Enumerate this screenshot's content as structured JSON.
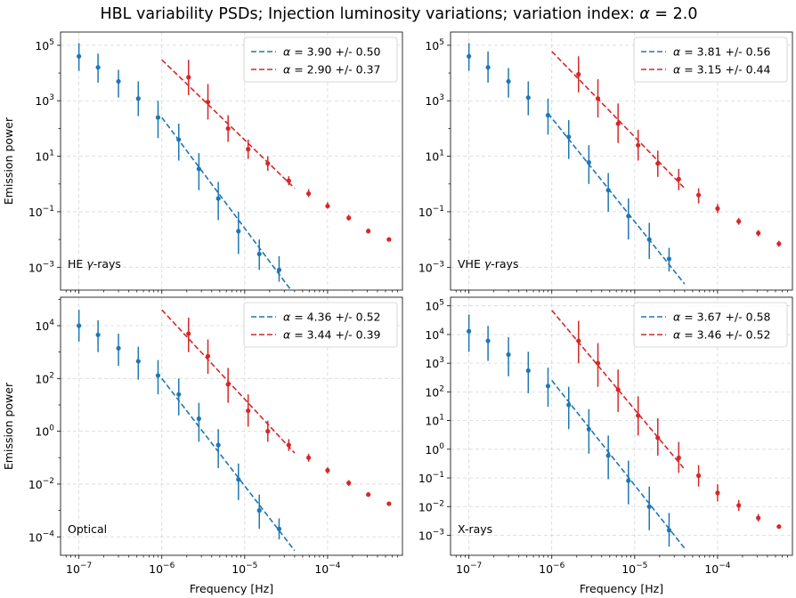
{
  "figure": {
    "title_prefix": "HBL variability PSDs; Injection luminosity variations; variation index: ",
    "title_symbol": "α",
    "title_suffix": " = 2.0",
    "shared_xlabel": "Frequency [Hz]",
    "shared_ylabel": "Emission power",
    "colors": {
      "blue": "#1f77b4",
      "red": "#d62728",
      "grid": "#b0b0b0"
    }
  },
  "chart_data": [
    {
      "type": "scatter",
      "panel": "top-left",
      "label_prefix": "HE ",
      "label_symbol": "γ",
      "label_suffix": "-rays",
      "xlabel": "",
      "ylabel": "Emission power",
      "xscale": "log",
      "yscale": "log",
      "xlim": [
        6e-08,
        0.0008
      ],
      "ylim": [
        0.00015,
        300000.0
      ],
      "xticks": [
        1e-07,
        1e-06,
        1e-05,
        0.0001
      ],
      "xtick_labels": [
        "10^-7",
        "10^-6",
        "10^-5",
        "10^-4"
      ],
      "yticks": [
        0.001,
        0.1,
        10.0,
        1000.0,
        100000.0
      ],
      "ytick_labels": [
        "10^-3",
        "10^-1",
        "10^1",
        "10^3",
        "10^5"
      ],
      "grid": true,
      "legend": [
        {
          "text_symbol": "α",
          "text": " = 3.90 +/- 0.50",
          "color": "#1f77b4"
        },
        {
          "text_symbol": "α",
          "text": " = 2.90 +/- 0.37",
          "color": "#d62728"
        }
      ],
      "series": [
        {
          "name": "blue",
          "color": "#1f77b4",
          "x": [
            1e-07,
            1.7e-07,
            3e-07,
            5.2e-07,
            9e-07,
            1.6e-06,
            2.8e-06,
            4.8e-06,
            8.4e-06,
            1.5e-05,
            2.6e-05
          ],
          "y": [
            40000.0,
            16000.0,
            5000.0,
            1200.0,
            250.0,
            40.0,
            3.5,
            0.3,
            0.02,
            0.003,
            0.0008
          ],
          "ylo": [
            12000.0,
            4500.0,
            1300.0,
            280.0,
            45.0,
            7.0,
            0.6,
            0.05,
            0.003,
            0.0008,
            0.0003
          ],
          "yhi": [
            120000.0,
            50000.0,
            13000.0,
            5000.0,
            1000.0,
            150.0,
            13.0,
            1.2,
            0.1,
            0.01,
            0.0025
          ]
        },
        {
          "name": "red",
          "color": "#d62728",
          "x": [
            2.1e-06,
            3.6e-06,
            6.3e-06,
            1.1e-05,
            1.9e-05,
            3.4e-05,
            5.9e-05,
            0.0001,
            0.00018,
            0.00031,
            0.00055
          ],
          "y": [
            7000.0,
            900.0,
            100.0,
            18.0,
            5.5,
            1.3,
            0.45,
            0.16,
            0.06,
            0.02,
            0.01
          ],
          "ylo": [
            1600.0,
            210.0,
            33.0,
            8.0,
            3.0,
            0.9,
            0.34,
            0.13,
            0.048,
            0.017,
            0.009
          ],
          "yhi": [
            30000.0,
            4000.0,
            300.0,
            40.0,
            10.0,
            1.9,
            0.65,
            0.22,
            0.078,
            0.025,
            0.012
          ]
        }
      ],
      "fits": [
        {
          "color": "#1f77b4",
          "x": [
            1e-06,
            4e-05
          ],
          "y": [
            250.0,
            0.0001
          ]
        },
        {
          "color": "#d62728",
          "x": [
            1e-06,
            4e-05
          ],
          "y": [
            30000.0,
            0.7
          ]
        }
      ]
    },
    {
      "type": "scatter",
      "panel": "top-right",
      "label_prefix": "VHE ",
      "label_symbol": "γ",
      "label_suffix": "-rays",
      "xlabel": "",
      "ylabel": "",
      "xscale": "log",
      "yscale": "log",
      "xlim": [
        6e-08,
        0.0008
      ],
      "ylim": [
        0.00015,
        300000.0
      ],
      "xticks": [
        1e-07,
        1e-06,
        1e-05,
        0.0001
      ],
      "xtick_labels": [
        "10^-7",
        "10^-6",
        "10^-5",
        "10^-4"
      ],
      "yticks": [
        0.001,
        0.1,
        10.0,
        1000.0,
        100000.0
      ],
      "ytick_labels": [
        "10^-3",
        "10^-1",
        "10^1",
        "10^3",
        "10^5"
      ],
      "grid": true,
      "legend": [
        {
          "text_symbol": "α",
          "text": " = 3.81 +/- 0.56",
          "color": "#1f77b4"
        },
        {
          "text_symbol": "α",
          "text": " = 3.15 +/- 0.44",
          "color": "#d62728"
        }
      ],
      "series": [
        {
          "name": "blue",
          "color": "#1f77b4",
          "x": [
            1e-07,
            1.7e-07,
            3e-07,
            5.2e-07,
            9e-07,
            1.6e-06,
            2.8e-06,
            4.8e-06,
            8.4e-06,
            1.5e-05,
            2.6e-05
          ],
          "y": [
            40000.0,
            16000.0,
            5000.0,
            1300.0,
            300.0,
            50.0,
            6.0,
            0.6,
            0.07,
            0.01,
            0.002
          ],
          "ylo": [
            12000.0,
            4500.0,
            1300.0,
            300.0,
            60.0,
            8.0,
            1.0,
            0.1,
            0.01,
            0.002,
            0.0007
          ],
          "yhi": [
            120000.0,
            60000.0,
            15000.0,
            5000.0,
            1200.0,
            200.0,
            25.0,
            2.5,
            0.3,
            0.04,
            0.005
          ]
        },
        {
          "name": "red",
          "color": "#d62728",
          "x": [
            2.1e-06,
            3.6e-06,
            6.3e-06,
            1.1e-05,
            1.9e-05,
            3.4e-05,
            5.9e-05,
            0.0001,
            0.00018,
            0.00031,
            0.00055
          ],
          "y": [
            9000.0,
            1200.0,
            150.0,
            25.0,
            5.5,
            1.5,
            0.4,
            0.13,
            0.045,
            0.017,
            0.007
          ],
          "ylo": [
            2000.0,
            250.0,
            30.0,
            7.0,
            1.8,
            0.6,
            0.2,
            0.09,
            0.034,
            0.013,
            0.0055
          ],
          "yhi": [
            40000.0,
            6000.0,
            800.0,
            90.0,
            16.0,
            3.5,
            0.7,
            0.19,
            0.06,
            0.022,
            0.009
          ]
        }
      ],
      "fits": [
        {
          "color": "#1f77b4",
          "x": [
            9e-07,
            4e-05
          ],
          "y": [
            350.0,
            0.00025
          ]
        },
        {
          "color": "#d62728",
          "x": [
            1e-06,
            4e-05
          ],
          "y": [
            60000.0,
            0.7
          ]
        }
      ]
    },
    {
      "type": "scatter",
      "panel": "bottom-left",
      "label_prefix": "Optical",
      "label_symbol": "",
      "label_suffix": "",
      "xlabel": "Frequency [Hz]",
      "ylabel": "Emission power",
      "xscale": "log",
      "yscale": "log",
      "xlim": [
        6e-08,
        0.0008
      ],
      "ylim": [
        2e-05,
        120000.0
      ],
      "xticks": [
        1e-07,
        1e-06,
        1e-05,
        0.0001
      ],
      "xtick_labels": [
        "10^-7",
        "10^-6",
        "10^-5",
        "10^-4"
      ],
      "yticks": [
        0.0001,
        0.01,
        1.0,
        100.0,
        10000.0
      ],
      "ytick_labels": [
        "10^-4",
        "10^-2",
        "10^0",
        "10^2",
        "10^4"
      ],
      "grid": true,
      "legend": [
        {
          "text_symbol": "α",
          "text": " = 4.36 +/- 0.52",
          "color": "#1f77b4"
        },
        {
          "text_symbol": "α",
          "text": " = 3.44 +/- 0.39",
          "color": "#d62728"
        }
      ],
      "series": [
        {
          "name": "blue",
          "color": "#1f77b4",
          "x": [
            1e-07,
            1.7e-07,
            3e-07,
            5.2e-07,
            9e-07,
            1.6e-06,
            2.8e-06,
            4.8e-06,
            8.4e-06,
            1.5e-05,
            2.6e-05
          ],
          "y": [
            10000.0,
            4500.0,
            1400.0,
            450.0,
            130.0,
            25.0,
            3.0,
            0.3,
            0.015,
            0.001,
            0.0002
          ],
          "ylo": [
            2500.0,
            1000.0,
            300.0,
            90.0,
            25.0,
            4.0,
            0.4,
            0.04,
            0.0025,
            0.0002,
            8e-05
          ],
          "yhi": [
            40000.0,
            16000.0,
            5000.0,
            1600.0,
            500.0,
            100.0,
            12.0,
            1.2,
            0.06,
            0.004,
            0.0005
          ]
        },
        {
          "name": "red",
          "color": "#d62728",
          "x": [
            2.1e-06,
            3.6e-06,
            6.3e-06,
            1.1e-05,
            1.9e-05,
            3.4e-05,
            5.9e-05,
            0.0001,
            0.00018,
            0.00031,
            0.00055
          ],
          "y": [
            5000.0,
            700.0,
            60.0,
            6.0,
            1.0,
            0.3,
            0.1,
            0.033,
            0.011,
            0.004,
            0.0018
          ],
          "ylo": [
            1000.0,
            150.0,
            12.0,
            1.5,
            0.4,
            0.18,
            0.07,
            0.025,
            0.0085,
            0.0033,
            0.0015
          ],
          "yhi": [
            20000.0,
            3000.0,
            250.0,
            25.0,
            2.5,
            0.5,
            0.14,
            0.043,
            0.014,
            0.0049,
            0.0021
          ]
        }
      ],
      "fits": [
        {
          "color": "#1f77b4",
          "x": [
            1e-06,
            4e-05
          ],
          "y": [
            100.0,
            3e-05
          ]
        },
        {
          "color": "#d62728",
          "x": [
            1e-06,
            4e-05
          ],
          "y": [
            40000.0,
            0.15
          ]
        }
      ]
    },
    {
      "type": "scatter",
      "panel": "bottom-right",
      "label_prefix": "X-rays",
      "label_symbol": "",
      "label_suffix": "",
      "xlabel": "Frequency [Hz]",
      "ylabel": "",
      "xscale": "log",
      "yscale": "log",
      "xlim": [
        6e-08,
        0.0008
      ],
      "ylim": [
        0.0002,
        200000.0
      ],
      "xticks": [
        1e-07,
        1e-06,
        1e-05,
        0.0001
      ],
      "xtick_labels": [
        "10^-7",
        "10^-6",
        "10^-5",
        "10^-4"
      ],
      "yticks": [
        0.001,
        0.01,
        0.1,
        1.0,
        10.0,
        100.0,
        1000.0,
        10000.0,
        100000.0
      ],
      "ytick_labels": [
        "10^-3",
        "10^-2",
        "10^-1",
        "10^0",
        "10^1",
        "10^2",
        "10^3",
        "10^4",
        "10^5"
      ],
      "grid": true,
      "legend": [
        {
          "text_symbol": "α",
          "text": " = 3.67 +/- 0.58",
          "color": "#1f77b4"
        },
        {
          "text_symbol": "α",
          "text": " = 3.46 +/- 0.52",
          "color": "#d62728"
        }
      ],
      "series": [
        {
          "name": "blue",
          "color": "#1f77b4",
          "x": [
            1e-07,
            1.7e-07,
            3e-07,
            5.2e-07,
            9e-07,
            1.6e-06,
            2.8e-06,
            4.8e-06,
            8.4e-06,
            1.5e-05,
            2.6e-05
          ],
          "y": [
            13000.0,
            6000.0,
            2000.0,
            550.0,
            160.0,
            35.0,
            5.0,
            0.6,
            0.08,
            0.01,
            0.0015
          ],
          "ylo": [
            2500.0,
            1200.0,
            350.0,
            90.0,
            30.0,
            5.0,
            0.7,
            0.09,
            0.012,
            0.0015,
            0.0004
          ],
          "yhi": [
            50000.0,
            20000.0,
            8000.0,
            2500.0,
            700.0,
            150.0,
            25.0,
            3.0,
            0.4,
            0.05,
            0.006
          ]
        },
        {
          "name": "red",
          "color": "#d62728",
          "x": [
            2.1e-06,
            3.6e-06,
            6.3e-06,
            1.1e-05,
            1.9e-05,
            3.4e-05,
            5.9e-05,
            0.0001,
            0.00018,
            0.00031,
            0.00055
          ],
          "y": [
            6000.0,
            1000.0,
            120.0,
            15.0,
            2.5,
            0.5,
            0.12,
            0.03,
            0.011,
            0.004,
            0.002
          ],
          "ylo": [
            1000.0,
            150.0,
            20.0,
            3.0,
            0.6,
            0.15,
            0.05,
            0.015,
            0.007,
            0.003,
            0.0017
          ],
          "yhi": [
            30000.0,
            5000.0,
            600.0,
            70.0,
            12.0,
            1.8,
            0.28,
            0.06,
            0.017,
            0.0055,
            0.0023
          ]
        }
      ],
      "fits": [
        {
          "color": "#1f77b4",
          "x": [
            1e-06,
            4e-05
          ],
          "y": [
            250.0,
            0.00035
          ]
        },
        {
          "color": "#d62728",
          "x": [
            1e-06,
            4e-05
          ],
          "y": [
            70000.0,
            0.2
          ]
        }
      ]
    }
  ]
}
